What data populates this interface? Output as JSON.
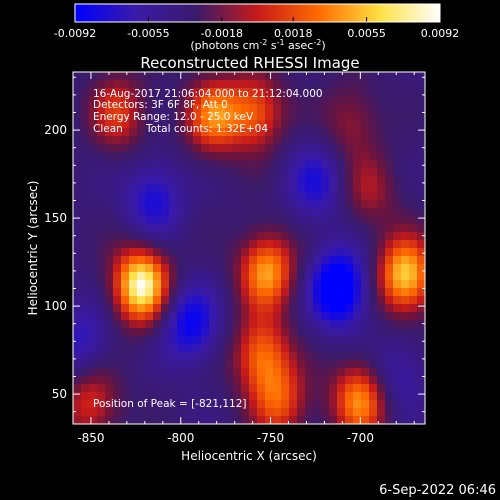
{
  "colorbar": {
    "tick_labels": [
      "-0.0092",
      "-0.0055",
      "-0.0018",
      "0.0018",
      "0.0055",
      "0.0092"
    ],
    "tick_values": [
      -0.0092,
      -0.0055,
      -0.0018,
      0.0018,
      0.0055,
      0.0092
    ],
    "range": [
      -0.0092,
      0.0092
    ],
    "unit_main": "(photons cm",
    "unit_exp1": "-2",
    "unit_mid": " s",
    "unit_exp2": "-1",
    "unit_tail": " asec",
    "unit_exp3": "-2",
    "unit_close": ")",
    "colors": [
      "#0000ff",
      "#3a1aa8",
      "#3a1a6a",
      "#c81a1a",
      "#ff6a00",
      "#ffe040",
      "#ffffff"
    ]
  },
  "plot": {
    "title": "Reconstructed RHESSI Image",
    "xlabel": "Heliocentric X (arcsec)",
    "ylabel": "Heliocentric Y (arcsec)",
    "xlim": [
      -860,
      -664
    ],
    "ylim": [
      33,
      233
    ],
    "x_ticks": [
      -850,
      -800,
      -750,
      -700
    ],
    "y_ticks": [
      50,
      100,
      150,
      200
    ],
    "x_tick_labels": [
      "-850",
      "-800",
      "-750",
      "-700"
    ],
    "y_tick_labels": [
      "50",
      "100",
      "150",
      "200"
    ]
  },
  "info": {
    "line1": "16-Aug-2017 21:06:04.000 to 21:12:04.000",
    "line2": "Detectors: 3F 6F 8F, Att 0",
    "line3": "Energy Range: 12.0 - 25.0 keV",
    "line4_a": "Clean",
    "line4_b": "Total counts: 1.32E+04"
  },
  "peak": {
    "label": "Position of Peak = [-821,112]",
    "x": -821,
    "y": 112
  },
  "footer": {
    "date": "6-Sep-2022 06:46"
  },
  "image_sources": [
    {
      "x": -822,
      "y": 112,
      "a": 1.0
    },
    {
      "x": -752,
      "y": 120,
      "a": 0.72
    },
    {
      "x": -675,
      "y": 117,
      "a": 0.85
    },
    {
      "x": -782,
      "y": 208,
      "a": 0.62
    },
    {
      "x": -758,
      "y": 210,
      "a": 0.55
    },
    {
      "x": -835,
      "y": 210,
      "a": 0.45
    },
    {
      "x": -755,
      "y": 72,
      "a": 0.6
    },
    {
      "x": -700,
      "y": 47,
      "a": 0.7
    },
    {
      "x": -745,
      "y": 45,
      "a": 0.5
    },
    {
      "x": -850,
      "y": 45,
      "a": 0.45
    },
    {
      "x": -695,
      "y": 165,
      "a": 0.3
    },
    {
      "x": -705,
      "y": 205,
      "a": 0.3
    },
    {
      "x": -795,
      "y": 90,
      "a": -0.55
    },
    {
      "x": -712,
      "y": 110,
      "a": -0.8
    },
    {
      "x": -815,
      "y": 160,
      "a": -0.45
    },
    {
      "x": -855,
      "y": 80,
      "a": -0.35
    },
    {
      "x": -725,
      "y": 170,
      "a": -0.4
    },
    {
      "x": -680,
      "y": 60,
      "a": -0.3
    }
  ]
}
